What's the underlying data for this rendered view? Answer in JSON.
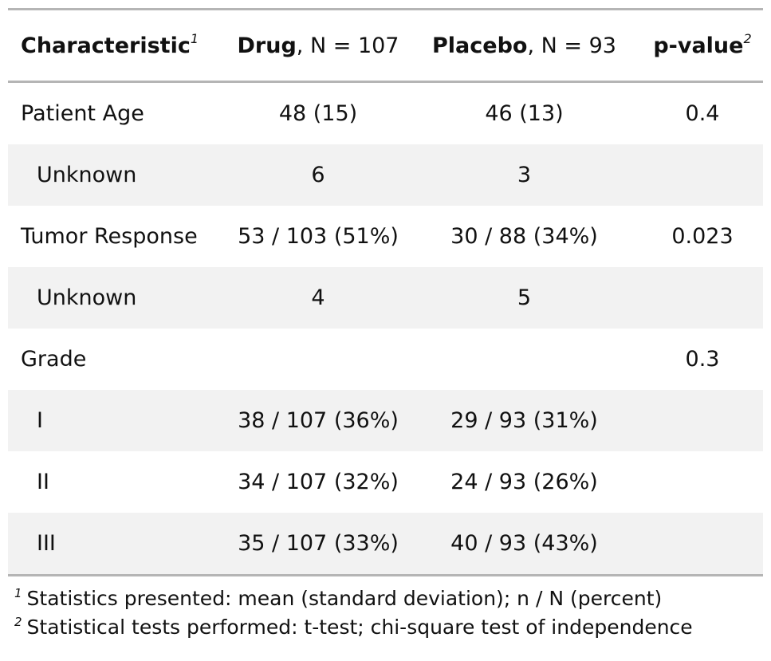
{
  "header": {
    "characteristic": "Characteristic",
    "characteristic_mark": "1",
    "drug_name": "Drug",
    "drug_n": ", N = 107",
    "placebo_name": "Placebo",
    "placebo_n": ", N = 93",
    "pvalue": "p-value",
    "pvalue_mark": "2"
  },
  "rows": [
    {
      "label": "Patient Age",
      "drug": "48 (15)",
      "placebo": "46 (13)",
      "p": "0.4"
    },
    {
      "label": "Unknown",
      "drug": "6",
      "placebo": "3",
      "p": ""
    },
    {
      "label": "Tumor Response",
      "drug": "53 / 103 (51%)",
      "placebo": "30 / 88 (34%)",
      "p": "0.023"
    },
    {
      "label": "Unknown",
      "drug": "4",
      "placebo": "5",
      "p": ""
    },
    {
      "label": "Grade",
      "drug": "",
      "placebo": "",
      "p": "0.3"
    },
    {
      "label": "I",
      "drug": "38 / 107 (36%)",
      "placebo": "29 / 93 (31%)",
      "p": ""
    },
    {
      "label": "II",
      "drug": "34 / 107 (32%)",
      "placebo": "24 / 93 (26%)",
      "p": ""
    },
    {
      "label": "III",
      "drug": "35 / 107 (33%)",
      "placebo": "40 / 93 (43%)",
      "p": ""
    }
  ],
  "footnotes": [
    {
      "mark": "1",
      "text": "Statistics presented: mean (standard deviation); n / N (percent)"
    },
    {
      "mark": "2",
      "text": "Statistical tests performed: t-test; chi-square test of independence"
    }
  ],
  "colors": {
    "rule": "#b5b5b5",
    "stripe": "#f2f2f2"
  }
}
